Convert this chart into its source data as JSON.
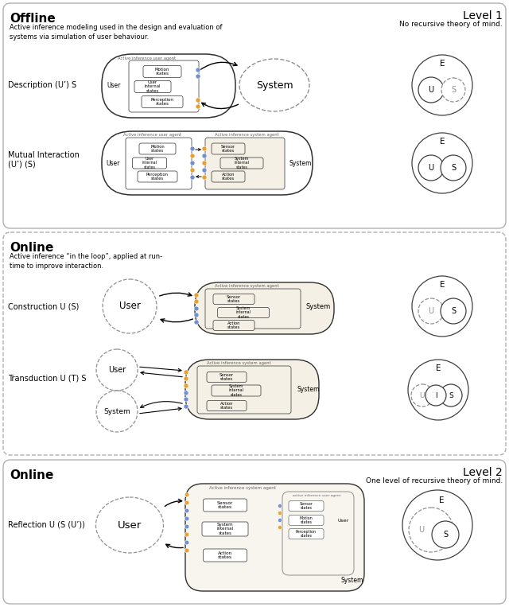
{
  "fig_width": 6.4,
  "fig_height": 7.63,
  "bg_color": "#ffffff",
  "panel1": {
    "title": "Offline",
    "level": "Level 1",
    "level_sub": "No recursive theory of mind.",
    "description": "Active inference modeling used in the design and evaluation of\nsystems via simulation of user behaviour.",
    "row1_label": "Description (U’) S",
    "row2_label": "Mutual Interaction\n(U’) (S)"
  },
  "panel2": {
    "title": "Online",
    "description": "Active inference “in the loop”, applied at run-\ntime to improve interaction.",
    "row1_label": "Construction U (S)",
    "row2_label": "Transduction U (T) S"
  },
  "panel3": {
    "title": "Online",
    "level": "Level 2",
    "level_sub": "One level of recursive theory of mind.",
    "row1_label": "Reflection U (S (U’))"
  },
  "colors": {
    "orange": "#e8a030",
    "blue": "#7090d0",
    "box_fill": "#f5f0e5",
    "agent_fill": "#f8f5ee",
    "border": "#404040",
    "light_border": "#909090",
    "panel_border": "#b0b0b0"
  }
}
